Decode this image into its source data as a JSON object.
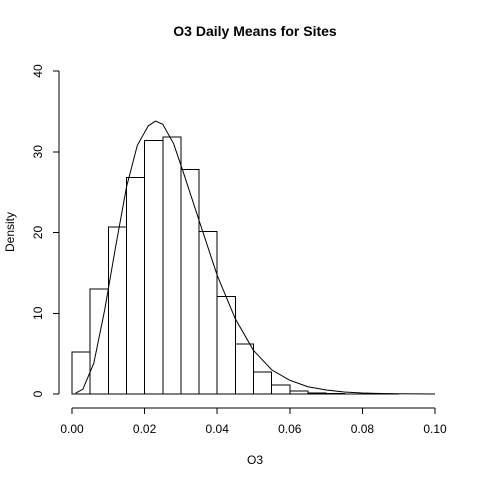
{
  "chart_data": {
    "type": "bar",
    "title": "O3 Daily Means for Sites",
    "xlabel": "O3",
    "ylabel": "Density",
    "xlim": [
      0,
      0.1
    ],
    "ylim": [
      0,
      40
    ],
    "x_ticks": [
      0.0,
      0.02,
      0.04,
      0.06,
      0.08,
      0.1
    ],
    "x_tick_labels": [
      "0.00",
      "0.02",
      "0.04",
      "0.06",
      "0.08",
      "0.10"
    ],
    "y_ticks": [
      0,
      10,
      20,
      30,
      40
    ],
    "y_tick_labels": [
      "0",
      "10",
      "20",
      "30",
      "40"
    ],
    "bin_width": 0.005,
    "bins": [
      {
        "x0": 0.0,
        "x1": 0.005,
        "density": 5.2
      },
      {
        "x0": 0.005,
        "x1": 0.01,
        "density": 13.0
      },
      {
        "x0": 0.01,
        "x1": 0.015,
        "density": 20.7
      },
      {
        "x0": 0.015,
        "x1": 0.02,
        "density": 26.8
      },
      {
        "x0": 0.02,
        "x1": 0.025,
        "density": 31.4
      },
      {
        "x0": 0.025,
        "x1": 0.03,
        "density": 31.8
      },
      {
        "x0": 0.03,
        "x1": 0.035,
        "density": 27.8
      },
      {
        "x0": 0.035,
        "x1": 0.04,
        "density": 20.1
      },
      {
        "x0": 0.04,
        "x1": 0.045,
        "density": 12.1
      },
      {
        "x0": 0.045,
        "x1": 0.05,
        "density": 6.2
      },
      {
        "x0": 0.05,
        "x1": 0.055,
        "density": 2.7
      },
      {
        "x0": 0.055,
        "x1": 0.06,
        "density": 1.1
      },
      {
        "x0": 0.06,
        "x1": 0.065,
        "density": 0.4
      },
      {
        "x0": 0.065,
        "x1": 0.07,
        "density": 0.15
      },
      {
        "x0": 0.07,
        "x1": 0.075,
        "density": 0.05
      },
      {
        "x0": 0.075,
        "x1": 0.08,
        "density": 0.02
      },
      {
        "x0": 0.08,
        "x1": 0.085,
        "density": 0.01
      },
      {
        "x0": 0.085,
        "x1": 0.09,
        "density": 0.01
      }
    ],
    "density_curve": {
      "x": [
        0.001,
        0.003,
        0.006,
        0.009,
        0.012,
        0.015,
        0.018,
        0.021,
        0.023,
        0.025,
        0.028,
        0.031,
        0.035,
        0.04,
        0.045,
        0.05,
        0.055,
        0.06,
        0.065,
        0.07,
        0.075,
        0.08,
        0.085,
        0.09,
        0.095,
        0.1
      ],
      "y": [
        0.1,
        0.6,
        3.8,
        10.4,
        18.2,
        25.6,
        30.8,
        33.2,
        33.8,
        33.4,
        31.0,
        27.0,
        21.5,
        14.7,
        9.3,
        5.4,
        3.0,
        1.7,
        0.9,
        0.5,
        0.25,
        0.12,
        0.06,
        0.03,
        0.01,
        0.0
      ]
    }
  }
}
